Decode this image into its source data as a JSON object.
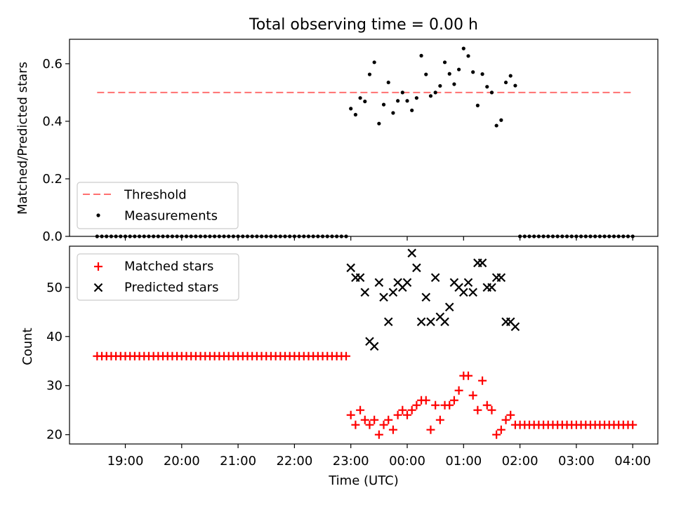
{
  "title": "Total observing time = 0.00 h",
  "colors": {
    "threshold": "#ff7070",
    "measurements": "#000000",
    "matched": "#ff0000",
    "predicted": "#000000"
  },
  "chart_data": [
    {
      "type": "scatter",
      "ylabel": "Matched/Predicted stars",
      "xlabel": "",
      "ylim": [
        0,
        0.685
      ],
      "yticks": [
        0.0,
        0.2,
        0.4,
        0.6
      ],
      "ytick_labels": [
        "0.0",
        "0.2",
        "0.4",
        "0.6"
      ],
      "legend": {
        "placement": "lower-left",
        "entries": [
          "Threshold",
          "Measurements"
        ]
      },
      "threshold": {
        "name": "Threshold",
        "y": 0.5,
        "x_range": [
          "18:30",
          "04:00"
        ]
      },
      "series": [
        {
          "name": "Measurements",
          "x": [
            "18:30",
            "18:35",
            "18:40",
            "18:45",
            "18:50",
            "18:55",
            "19:00",
            "19:05",
            "19:10",
            "19:15",
            "19:20",
            "19:25",
            "19:30",
            "19:35",
            "19:40",
            "19:45",
            "19:50",
            "19:55",
            "20:00",
            "20:05",
            "20:10",
            "20:15",
            "20:20",
            "20:25",
            "20:30",
            "20:35",
            "20:40",
            "20:45",
            "20:50",
            "20:55",
            "21:00",
            "21:05",
            "21:10",
            "21:15",
            "21:20",
            "21:25",
            "21:30",
            "21:35",
            "21:40",
            "21:45",
            "21:50",
            "21:55",
            "22:00",
            "22:05",
            "22:10",
            "22:15",
            "22:20",
            "22:25",
            "22:30",
            "22:35",
            "22:40",
            "22:45",
            "22:50",
            "22:55",
            "23:00",
            "23:05",
            "23:10",
            "23:15",
            "23:20",
            "23:25",
            "23:30",
            "23:35",
            "23:40",
            "23:45",
            "23:50",
            "23:55",
            "00:00",
            "00:05",
            "00:10",
            "00:15",
            "00:20",
            "00:25",
            "00:30",
            "00:35",
            "00:40",
            "00:45",
            "00:50",
            "00:55",
            "01:00",
            "01:05",
            "01:10",
            "01:15",
            "01:20",
            "01:25",
            "01:30",
            "01:35",
            "01:40",
            "01:45",
            "01:50",
            "01:55",
            "02:00",
            "02:05",
            "02:10",
            "02:15",
            "02:20",
            "02:25",
            "02:30",
            "02:35",
            "02:40",
            "02:45",
            "02:50",
            "02:55",
            "03:00",
            "03:05",
            "03:10",
            "03:15",
            "03:20",
            "03:25",
            "03:30",
            "03:35",
            "03:40",
            "03:45",
            "03:50",
            "03:55",
            "04:00"
          ],
          "y": [
            0,
            0,
            0,
            0,
            0,
            0,
            0,
            0,
            0,
            0,
            0,
            0,
            0,
            0,
            0,
            0,
            0,
            0,
            0,
            0,
            0,
            0,
            0,
            0,
            0,
            0,
            0,
            0,
            0,
            0,
            0,
            0,
            0,
            0,
            0,
            0,
            0,
            0,
            0,
            0,
            0,
            0,
            0,
            0,
            0,
            0,
            0,
            0,
            0,
            0,
            0,
            0,
            0,
            0,
            0.444,
            0.423,
            0.481,
            0.469,
            0.563,
            0.605,
            0.392,
            0.458,
            0.535,
            0.429,
            0.471,
            0.5,
            0.471,
            0.438,
            0.481,
            0.628,
            0.563,
            0.488,
            0.5,
            0.523,
            0.605,
            0.565,
            0.529,
            0.58,
            0.653,
            0.627,
            0.571,
            0.455,
            0.564,
            0.52,
            0.5,
            0.385,
            0.404,
            0.535,
            0.558,
            0.524,
            0,
            0,
            0,
            0,
            0,
            0,
            0,
            0,
            0,
            0,
            0,
            0,
            0,
            0,
            0,
            0,
            0,
            0,
            0,
            0,
            0,
            0,
            0,
            0,
            0
          ]
        }
      ]
    },
    {
      "type": "scatter",
      "ylabel": "Count",
      "xlabel": "Time (UTC)",
      "ylim": [
        18.1,
        58.4
      ],
      "yticks": [
        20,
        30,
        40,
        50
      ],
      "ytick_labels": [
        "20",
        "30",
        "40",
        "50"
      ],
      "xtick_labels": [
        "19:00",
        "20:00",
        "21:00",
        "22:00",
        "23:00",
        "00:00",
        "01:00",
        "02:00",
        "03:00",
        "04:00"
      ],
      "legend": {
        "placement": "upper-left",
        "entries": [
          "Matched stars",
          "Predicted stars"
        ]
      },
      "series": [
        {
          "name": "Matched stars",
          "x": [
            "18:30",
            "18:35",
            "18:40",
            "18:45",
            "18:50",
            "18:55",
            "19:00",
            "19:05",
            "19:10",
            "19:15",
            "19:20",
            "19:25",
            "19:30",
            "19:35",
            "19:40",
            "19:45",
            "19:50",
            "19:55",
            "20:00",
            "20:05",
            "20:10",
            "20:15",
            "20:20",
            "20:25",
            "20:30",
            "20:35",
            "20:40",
            "20:45",
            "20:50",
            "20:55",
            "21:00",
            "21:05",
            "21:10",
            "21:15",
            "21:20",
            "21:25",
            "21:30",
            "21:35",
            "21:40",
            "21:45",
            "21:50",
            "21:55",
            "22:00",
            "22:05",
            "22:10",
            "22:15",
            "22:20",
            "22:25",
            "22:30",
            "22:35",
            "22:40",
            "22:45",
            "22:50",
            "22:55",
            "23:00",
            "23:05",
            "23:10",
            "23:15",
            "23:20",
            "23:25",
            "23:30",
            "23:35",
            "23:40",
            "23:45",
            "23:50",
            "23:55",
            "00:00",
            "00:05",
            "00:10",
            "00:15",
            "00:20",
            "00:25",
            "00:30",
            "00:35",
            "00:40",
            "00:45",
            "00:50",
            "00:55",
            "01:00",
            "01:05",
            "01:10",
            "01:15",
            "01:20",
            "01:25",
            "01:30",
            "01:35",
            "01:40",
            "01:45",
            "01:50",
            "01:55",
            "02:00",
            "02:05",
            "02:10",
            "02:15",
            "02:20",
            "02:25",
            "02:30",
            "02:35",
            "02:40",
            "02:45",
            "02:50",
            "02:55",
            "03:00",
            "03:05",
            "03:10",
            "03:15",
            "03:20",
            "03:25",
            "03:30",
            "03:35",
            "03:40",
            "03:45",
            "03:50",
            "03:55",
            "04:00"
          ],
          "y": [
            36,
            36,
            36,
            36,
            36,
            36,
            36,
            36,
            36,
            36,
            36,
            36,
            36,
            36,
            36,
            36,
            36,
            36,
            36,
            36,
            36,
            36,
            36,
            36,
            36,
            36,
            36,
            36,
            36,
            36,
            36,
            36,
            36,
            36,
            36,
            36,
            36,
            36,
            36,
            36,
            36,
            36,
            36,
            36,
            36,
            36,
            36,
            36,
            36,
            36,
            36,
            36,
            36,
            36,
            24,
            22,
            25,
            23,
            22,
            23,
            20,
            22,
            23,
            21,
            24,
            25,
            24,
            25,
            26,
            27,
            27,
            21,
            26,
            23,
            26,
            26,
            27,
            29,
            32,
            32,
            28,
            25,
            31,
            26,
            25,
            20,
            21,
            23,
            24,
            22,
            22,
            22,
            22,
            22,
            22,
            22,
            22,
            22,
            22,
            22,
            22,
            22,
            22,
            22,
            22,
            22,
            22,
            22,
            22,
            22,
            22,
            22,
            22,
            22,
            22
          ]
        },
        {
          "name": "Predicted stars",
          "x": [
            "23:00",
            "23:05",
            "23:10",
            "23:15",
            "23:20",
            "23:25",
            "23:30",
            "23:35",
            "23:40",
            "23:45",
            "23:50",
            "23:55",
            "00:00",
            "00:05",
            "00:10",
            "00:15",
            "00:20",
            "00:25",
            "00:30",
            "00:35",
            "00:40",
            "00:45",
            "00:50",
            "00:55",
            "01:00",
            "01:05",
            "01:10",
            "01:15",
            "01:20",
            "01:25",
            "01:30",
            "01:35",
            "01:40",
            "01:45",
            "01:50",
            "01:55"
          ],
          "y": [
            54,
            52,
            52,
            49,
            39,
            38,
            51,
            48,
            43,
            49,
            51,
            50,
            51,
            57,
            54,
            43,
            48,
            43,
            52,
            44,
            43,
            46,
            51,
            50,
            49,
            51,
            49,
            55,
            55,
            50,
            50,
            52,
            52,
            43,
            43,
            42
          ]
        }
      ]
    }
  ]
}
